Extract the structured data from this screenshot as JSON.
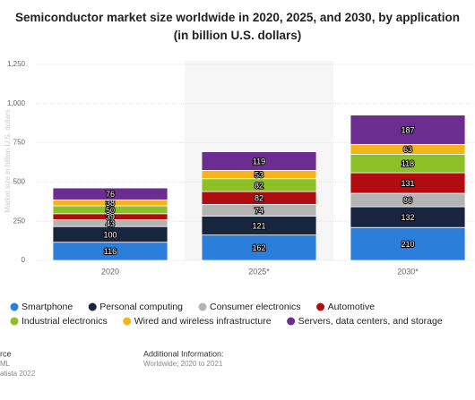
{
  "chart_data": {
    "type": "stacked_bar",
    "title": "Semiconductor market size worldwide in 2020, 2025, and 2030, by application (in billion U.S. dollars)",
    "y_axis_label": "Market size in billion U.S. dollars",
    "categories": [
      "2020",
      "2025*",
      "2030*"
    ],
    "series": [
      {
        "name": "Smartphone",
        "color": "#2b7fdb",
        "values": [
          116,
          162,
          210
        ]
      },
      {
        "name": "Personal computing",
        "color": "#17253f",
        "values": [
          100,
          121,
          132
        ]
      },
      {
        "name": "Consumer electronics",
        "color": "#b4b4b4",
        "values": [
          43,
          74,
          86
        ]
      },
      {
        "name": "Automotive",
        "color": "#b10d10",
        "values": [
          39,
          82,
          131
        ]
      },
      {
        "name": "Industrial electronics",
        "color": "#8cc026",
        "values": [
          50,
          82,
          118
        ]
      },
      {
        "name": "Wired and wireless infrastructure",
        "color": "#f3b51a",
        "values": [
          38,
          53,
          63
        ]
      },
      {
        "name": "Servers, data centers, and storage",
        "color": "#6b2d8f",
        "values": [
          76,
          119,
          187
        ]
      }
    ],
    "ylim": [
      0,
      1250
    ],
    "yticks": [
      0,
      250,
      500,
      750,
      {
        "value": 1000,
        "label": "1,000"
      },
      {
        "value": 1250,
        "label": "1,250"
      }
    ],
    "grid": true,
    "legend": "bottom",
    "footer": {
      "source_lines": [
        "rce",
        "ML",
        "atista 2022"
      ],
      "additional_title": "Additional Information:",
      "additional_text": "Worldwide; 2020 to 2021"
    }
  }
}
